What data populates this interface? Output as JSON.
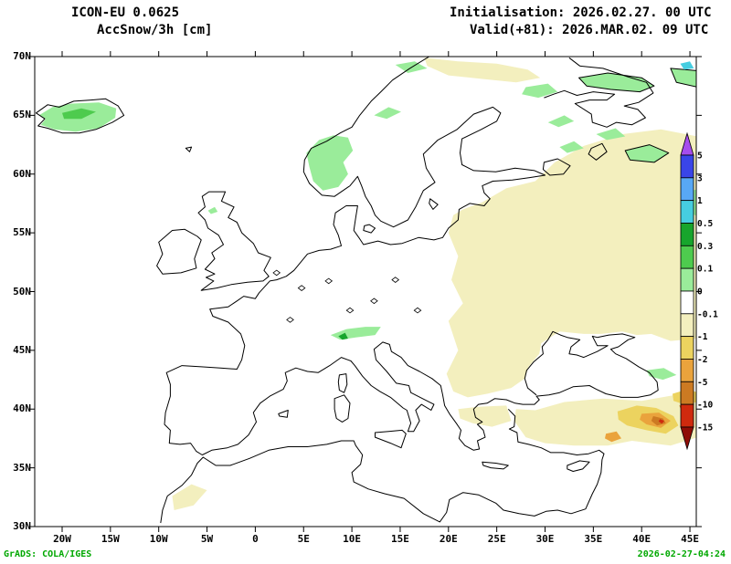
{
  "header": {
    "line1": "ICON-EU 0.0625",
    "line2": "AccSnow/3h [cm]",
    "init": "Initialisation: 2026.02.27. 00 UTC",
    "valid": "Valid(+81): 2026.MAR.02. 09 UTC"
  },
  "footer": {
    "left": "GrADS: COLA/IGES",
    "right": "2026-02-27-04:24",
    "color": "#00a800"
  },
  "chart_data": {
    "type": "heatmap",
    "title": "AccSnow/3h [cm]",
    "model": "ICON-EU 0.0625",
    "init_time": "2026.02.27. 00 UTC",
    "valid_time": "2026.MAR.02. 09 UTC",
    "lead_hours": 81,
    "units": "cm",
    "extent": {
      "lon_min": -22.8,
      "lon_max": 45.8,
      "lat_min": 30,
      "lat_max": 70
    },
    "grid": false,
    "x_ticks": [
      {
        "label": "20W",
        "lon": -20
      },
      {
        "label": "15W",
        "lon": -15
      },
      {
        "label": "10W",
        "lon": -10
      },
      {
        "label": "5W",
        "lon": -5
      },
      {
        "label": "0",
        "lon": 0
      },
      {
        "label": "5E",
        "lon": 5
      },
      {
        "label": "10E",
        "lon": 10
      },
      {
        "label": "15E",
        "lon": 15
      },
      {
        "label": "20E",
        "lon": 20
      },
      {
        "label": "25E",
        "lon": 25
      },
      {
        "label": "30E",
        "lon": 30
      },
      {
        "label": "35E",
        "lon": 35
      },
      {
        "label": "40E",
        "lon": 40
      },
      {
        "label": "45E",
        "lon": 45
      }
    ],
    "y_ticks": [
      {
        "label": "70N",
        "lat": 70
      },
      {
        "label": "65N",
        "lat": 65
      },
      {
        "label": "60N",
        "lat": 60
      },
      {
        "label": "55N",
        "lat": 55
      },
      {
        "label": "50N",
        "lat": 50
      },
      {
        "label": "45N",
        "lat": 45
      },
      {
        "label": "40N",
        "lat": 40
      },
      {
        "label": "35N",
        "lat": 35
      },
      {
        "label": "30N",
        "lat": 30
      }
    ],
    "palette": {
      "purple": "#a64ded",
      "blue": "#3a45e8",
      "light_blue": "#58a8f5",
      "cyan": "#46cde0",
      "dark_green": "#17a52c",
      "green": "#4ecb4e",
      "light_green": "#9aec9a",
      "white": "#ffffff",
      "pale_yellow": "#f3efbe",
      "yellow": "#ecd35f",
      "orange": "#eaa33c",
      "dark_orange": "#cc7a22",
      "red": "#cf2a0e",
      "dark_red": "#8f0d06"
    },
    "colorbar": {
      "legend_position": "right-inside",
      "boundary_labels": [
        "5",
        "3",
        "1",
        "0.5",
        "0.3",
        "0.1",
        "0",
        "-0.1",
        "-1",
        "-2",
        "-5",
        "-10",
        "-15"
      ],
      "colors_top_to_bottom": [
        "#a64ded",
        "#3a45e8",
        "#58a8f5",
        "#46cde0",
        "#17a52c",
        "#4ecb4e",
        "#9aec9a",
        "#ffffff",
        "#f3efbe",
        "#ecd35f",
        "#eaa33c",
        "#cc7a22",
        "#cf2a0e",
        "#8f0d06"
      ]
    },
    "features": [
      {
        "region": "Iceland",
        "value": "0.1 to 0.5 cm snow accumulation"
      },
      {
        "region": "Southern Norway mountains",
        "value": "0.1 to 0.3 cm snow accumulation"
      },
      {
        "region": "Kola peninsula / NW Russia",
        "value": "0.1 to 0.5 cm snow accumulation"
      },
      {
        "region": "Alps",
        "value": "0.1 to 0.3 cm snow accumulation"
      },
      {
        "region": "Upper Volga / NE edge of domain",
        "value": "0.1 to 0.3 cm snow accumulation"
      },
      {
        "region": "Eastern Europe, western Russia, Balkans, Anatolia",
        "value": "-0.1 to -1 cm"
      },
      {
        "region": "Eastern Turkey / Caucasus",
        "value": "-1 to -15 cm"
      }
    ]
  }
}
